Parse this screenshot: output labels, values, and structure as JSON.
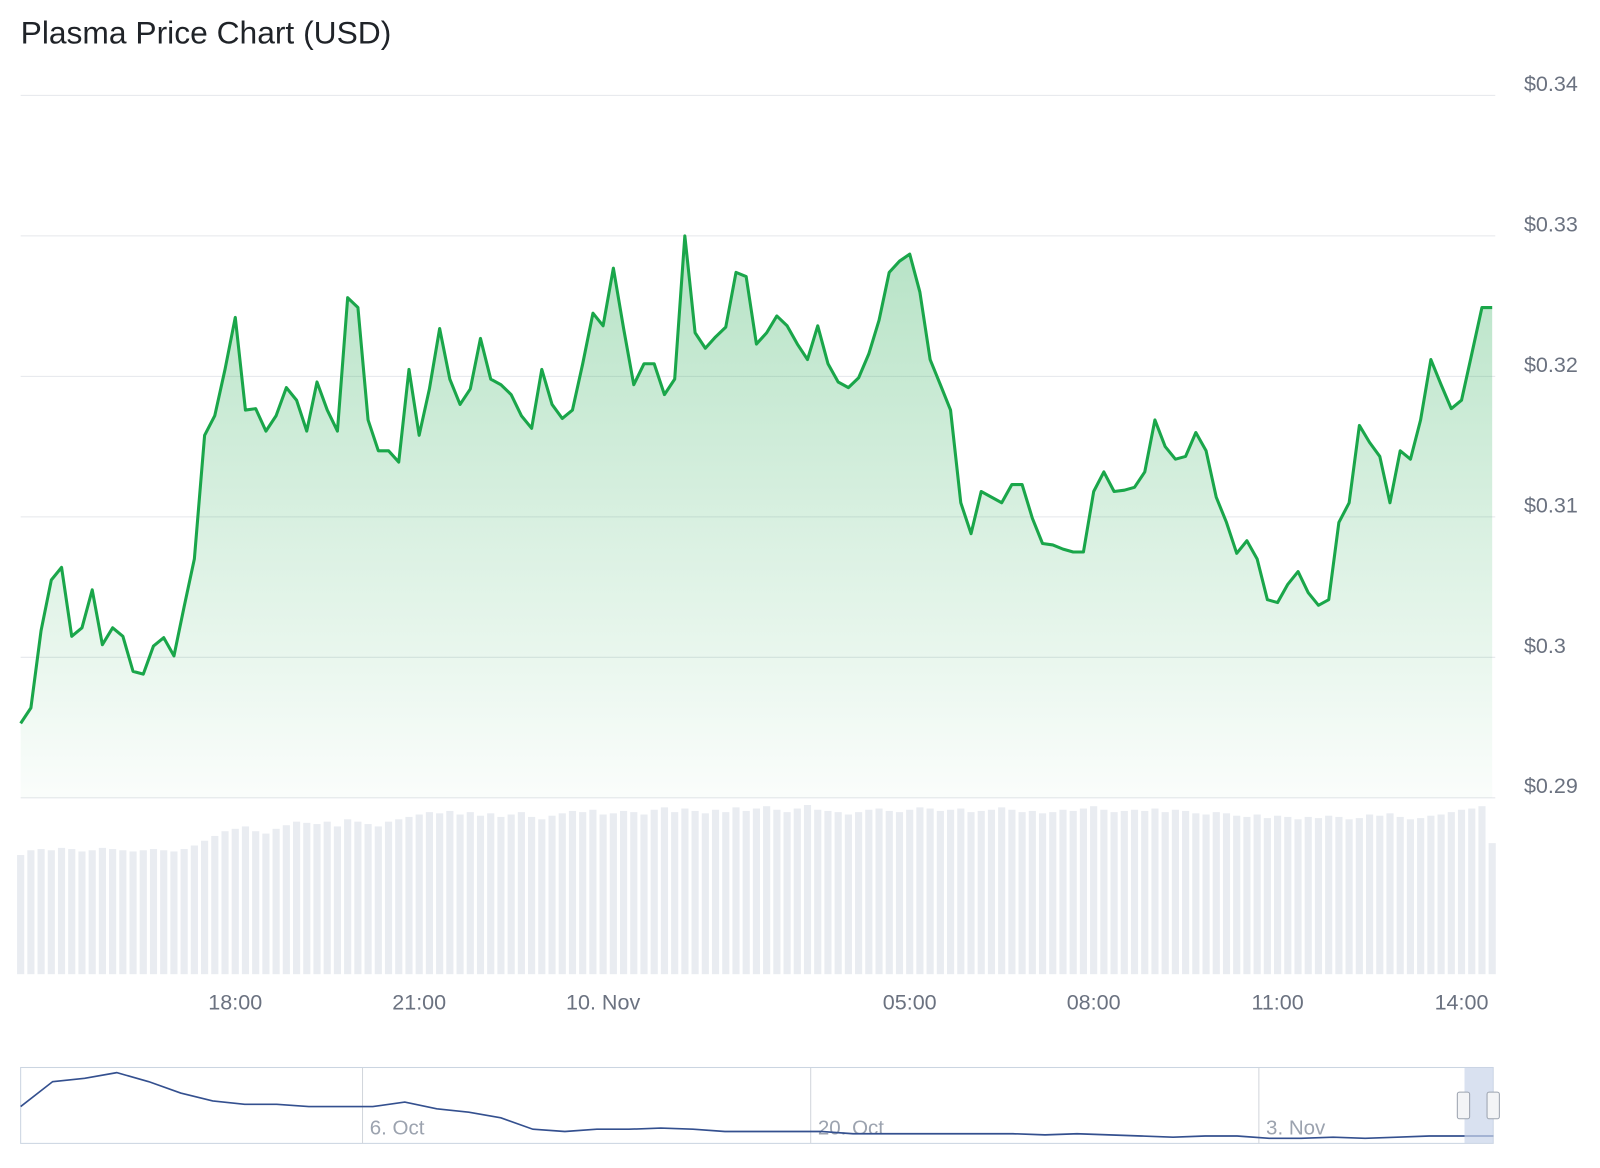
{
  "chart_data": {
    "type": "line",
    "title": "Plasma Price Chart (USD)",
    "categories": [
      null,
      null,
      null,
      null,
      null,
      null,
      null,
      null,
      null,
      null,
      null,
      null,
      null,
      null,
      null,
      null,
      null,
      null,
      null,
      null,
      null,
      "18:00",
      null,
      null,
      null,
      null,
      null,
      null,
      null,
      null,
      null,
      null,
      null,
      null,
      null,
      null,
      null,
      null,
      null,
      "21:00",
      null,
      null,
      null,
      null,
      null,
      null,
      null,
      null,
      null,
      null,
      null,
      null,
      null,
      null,
      null,
      null,
      null,
      "10. Nov",
      null,
      null,
      null,
      null,
      null,
      null,
      null,
      null,
      null,
      null,
      null,
      null,
      null,
      null,
      null,
      null,
      null,
      null,
      null,
      null,
      null,
      null,
      null,
      null,
      null,
      null,
      null,
      null,
      null,
      "05:00",
      null,
      null,
      null,
      null,
      null,
      null,
      null,
      null,
      null,
      null,
      null,
      null,
      null,
      null,
      null,
      null,
      null,
      "08:00",
      null,
      null,
      null,
      null,
      null,
      null,
      null,
      null,
      null,
      null,
      null,
      null,
      null,
      null,
      null,
      null,
      null,
      "11:00",
      null,
      null,
      null,
      null,
      null,
      null,
      null,
      null,
      null,
      null,
      null,
      null,
      null,
      null,
      null,
      null,
      null,
      "14:00",
      null,
      null,
      null
    ],
    "series": [
      {
        "name": "Price",
        "color": "#1aa64a",
        "values": [
          0.2953,
          0.2964,
          0.3019,
          0.3055,
          0.3064,
          0.3015,
          0.3021,
          0.3048,
          0.3009,
          0.3021,
          0.3015,
          0.299,
          0.2988,
          0.3008,
          0.3014,
          0.3001,
          0.3036,
          0.307,
          0.3158,
          0.3172,
          0.3205,
          0.3242,
          0.3176,
          0.3177,
          0.3161,
          0.3172,
          0.3192,
          0.3183,
          0.3161,
          0.3196,
          0.3176,
          0.3161,
          0.3256,
          0.3249,
          0.3169,
          0.3147,
          0.3147,
          0.3139,
          0.3205,
          0.3158,
          0.3191,
          0.3234,
          0.3198,
          0.318,
          0.3191,
          0.3227,
          0.3198,
          0.3194,
          0.3187,
          0.3172,
          0.3163,
          0.3205,
          0.318,
          0.317,
          0.3176,
          0.3209,
          0.3245,
          0.3236,
          0.3277,
          0.3234,
          0.3194,
          0.3209,
          0.3209,
          0.3187,
          0.3198,
          0.33,
          0.3231,
          0.322,
          0.3228,
          0.3235,
          0.3274,
          0.3271,
          0.3223,
          0.3231,
          0.3243,
          0.3236,
          0.3223,
          0.3212,
          0.3236,
          0.3209,
          0.3196,
          0.3192,
          0.3199,
          0.3216,
          0.324,
          0.3274,
          0.3282,
          0.3287,
          0.326,
          0.3212,
          0.3194,
          0.3176,
          0.311,
          0.3088,
          0.3118,
          0.3114,
          0.311,
          0.3123,
          0.3123,
          0.3099,
          0.3081,
          0.308,
          0.3077,
          0.3075,
          0.3075,
          0.3118,
          0.3132,
          0.3118,
          0.3119,
          0.3121,
          0.3132,
          0.3169,
          0.315,
          0.3141,
          0.3143,
          0.316,
          0.3147,
          0.3114,
          0.3096,
          0.3074,
          0.3083,
          0.307,
          0.3041,
          0.3039,
          0.3052,
          0.3061,
          0.3046,
          0.3037,
          0.3041,
          0.3096,
          0.311,
          0.3165,
          0.3153,
          0.3143,
          0.311,
          0.3147,
          0.3141,
          0.3169,
          0.3212,
          0.3194,
          0.3177,
          0.3183,
          0.3216,
          0.3249,
          0.3249
        ]
      }
    ],
    "ylim": [
      0.29,
      0.34
    ],
    "yticks": [
      {
        "value": 0.29,
        "label": "$0.29"
      },
      {
        "value": 0.3,
        "label": "$0.3"
      },
      {
        "value": 0.31,
        "label": "$0.31"
      },
      {
        "value": 0.32,
        "label": "$0.32"
      },
      {
        "value": 0.33,
        "label": "$0.33"
      },
      {
        "value": 0.34,
        "label": "$0.34"
      }
    ],
    "grid": true,
    "volume": {
      "color": "#e9ecf1",
      "values": [
        100,
        104,
        105,
        104,
        106,
        105,
        103,
        104,
        106,
        105,
        104,
        103,
        104,
        105,
        104,
        103,
        105,
        108,
        112,
        116,
        120,
        122,
        124,
        120,
        118,
        122,
        125,
        128,
        127,
        126,
        128,
        124,
        130,
        128,
        126,
        124,
        128,
        130,
        132,
        134,
        136,
        135,
        137,
        134,
        136,
        133,
        135,
        132,
        134,
        136,
        132,
        130,
        133,
        135,
        137,
        136,
        138,
        134,
        135,
        137,
        136,
        134,
        138,
        140,
        136,
        139,
        137,
        135,
        138,
        136,
        140,
        137,
        139,
        141,
        138,
        136,
        139,
        142,
        138,
        137,
        136,
        134,
        136,
        138,
        139,
        137,
        136,
        138,
        140,
        139,
        137,
        138,
        139,
        136,
        137,
        138,
        140,
        138,
        136,
        137,
        135,
        136,
        138,
        137,
        139,
        141,
        138,
        136,
        137,
        138,
        137,
        139,
        136,
        138,
        137,
        135,
        134,
        136,
        135,
        133,
        132,
        134,
        131,
        133,
        132,
        130,
        132,
        131,
        133,
        132,
        130,
        131,
        134,
        133,
        135,
        132,
        130,
        131,
        133,
        134,
        136,
        138,
        139,
        141,
        110
      ]
    },
    "navigator": {
      "color": "#34508f",
      "categories": [
        null,
        null,
        null,
        null,
        null,
        null,
        null,
        null,
        null,
        null,
        null,
        "6. Oct",
        null,
        null,
        null,
        null,
        null,
        null,
        null,
        null,
        null,
        null,
        null,
        null,
        null,
        "20. Oct",
        null,
        null,
        null,
        null,
        null,
        null,
        null,
        null,
        null,
        null,
        null,
        null,
        null,
        "3. Nov",
        null,
        null,
        null,
        null,
        null,
        null,
        null
      ],
      "values": [
        0.624,
        0.888,
        0.924,
        0.984,
        0.888,
        0.768,
        0.684,
        0.648,
        0.648,
        0.624,
        0.624,
        0.624,
        0.672,
        0.6,
        0.564,
        0.504,
        0.384,
        0.36,
        0.384,
        0.384,
        0.396,
        0.384,
        0.36,
        0.36,
        0.36,
        0.36,
        0.336,
        0.336,
        0.336,
        0.336,
        0.336,
        0.336,
        0.324,
        0.336,
        0.324,
        0.312,
        0.3,
        0.312,
        0.312,
        0.288,
        0.288,
        0.3,
        0.288,
        0.3,
        0.312,
        0.312,
        0.312
      ]
    }
  }
}
